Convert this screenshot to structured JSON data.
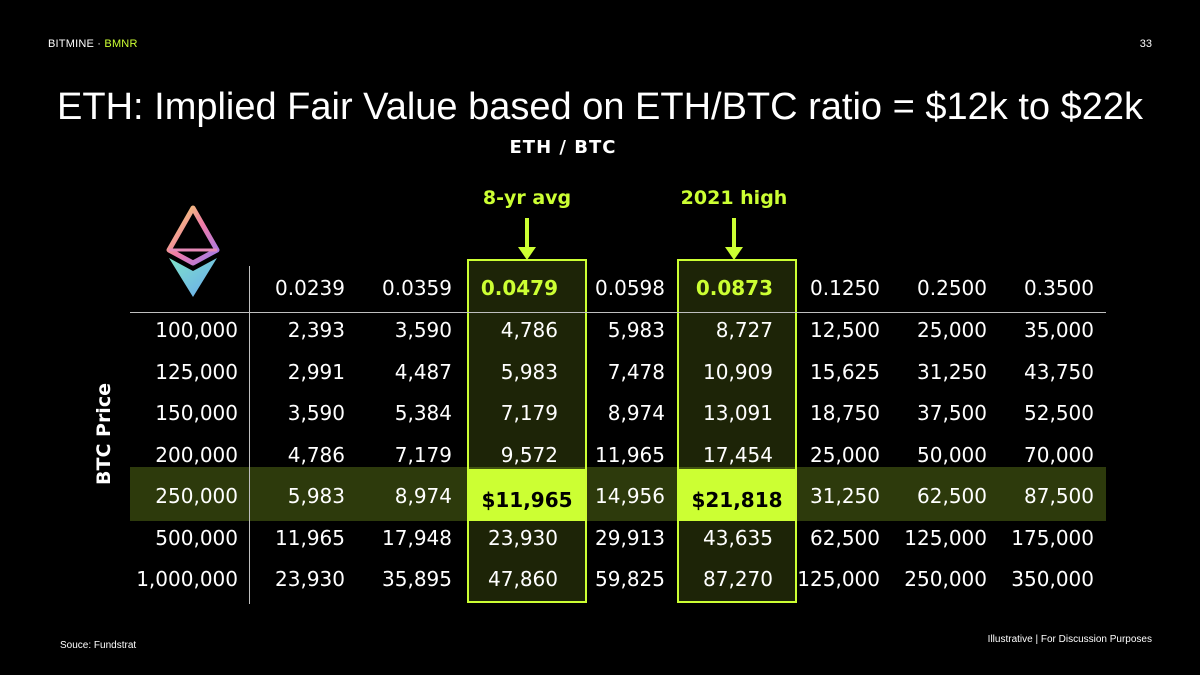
{
  "header": {
    "brand": "BITMINE",
    "separator": " · ",
    "ticker": "BMNR",
    "page_number": "33"
  },
  "title": "ETH: Implied Fair Value based on ETH/BTC ratio = $12k to $22k",
  "subtitle": "ETH / BTC",
  "annotations": [
    {
      "label": "8-yr avg",
      "column": 2
    },
    {
      "label": "2021 high",
      "column": 4
    }
  ],
  "logo": "ethereum-logo",
  "row_axis_label": "BTC Price",
  "table": {
    "column_headers": [
      "0.0239",
      "0.0359",
      "0.0479",
      "0.0598",
      "0.0873",
      "0.1250",
      "0.2500",
      "0.3500"
    ],
    "highlighted_columns": [
      2,
      4
    ],
    "highlighted_row": 4,
    "rows": [
      {
        "btc": "100,000",
        "values": [
          "2,393",
          "3,590",
          "4,786",
          "5,983",
          "8,727",
          "12,500",
          "25,000",
          "35,000"
        ]
      },
      {
        "btc": "125,000",
        "values": [
          "2,991",
          "4,487",
          "5,983",
          "7,478",
          "10,909",
          "15,625",
          "31,250",
          "43,750"
        ]
      },
      {
        "btc": "150,000",
        "values": [
          "3,590",
          "5,384",
          "7,179",
          "8,974",
          "13,091",
          "18,750",
          "37,500",
          "52,500"
        ]
      },
      {
        "btc": "200,000",
        "values": [
          "4,786",
          "7,179",
          "9,572",
          "11,965",
          "17,454",
          "25,000",
          "50,000",
          "70,000"
        ]
      },
      {
        "btc": "250,000",
        "values": [
          "5,983",
          "8,974",
          "$11,965",
          "14,956",
          "$21,818",
          "31,250",
          "62,500",
          "87,500"
        ]
      },
      {
        "btc": "500,000",
        "values": [
          "11,965",
          "17,948",
          "23,930",
          "29,913",
          "43,635",
          "62,500",
          "125,000",
          "175,000"
        ]
      },
      {
        "btc": "1,000,000",
        "values": [
          "23,930",
          "35,895",
          "47,860",
          "59,825",
          "87,270",
          "125,000",
          "250,000",
          "350,000"
        ]
      }
    ]
  },
  "source": "Souce: Fundstrat",
  "footer": "Illustrative  |  For Discussion Purposes",
  "colors": {
    "background": "#000000",
    "accent": "#ccff33",
    "highlight_band": "#2d3a0c"
  }
}
